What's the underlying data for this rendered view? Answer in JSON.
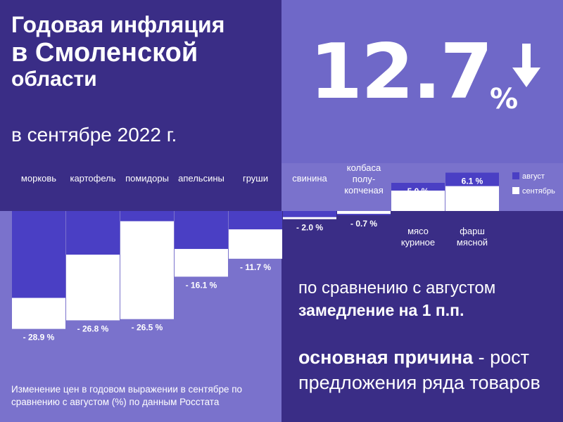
{
  "header": {
    "title_line1": "Годовая инфляция",
    "title_line2": "в Смоленской",
    "title_line3": "области",
    "subtitle": "в сентябре 2022 г."
  },
  "headline": {
    "value": "12.7",
    "unit": "%",
    "trend_icon": "down-arrow-icon"
  },
  "chart_data": {
    "type": "bar",
    "categories": [
      "морковь",
      "картофель",
      "помидоры",
      "апельсины",
      "груши",
      "свинина",
      "колбаса полу-копченая",
      "мясо куриное",
      "фарш мясной"
    ],
    "category_label_lines": [
      [
        "морковь"
      ],
      [
        "картофель"
      ],
      [
        "помидоры"
      ],
      [
        "апельсины"
      ],
      [
        "груши"
      ],
      [
        "свинина"
      ],
      [
        "колбаса",
        "полу-",
        "копченая"
      ],
      [
        "мясо",
        "куриное"
      ],
      [
        "фарш",
        "мясной"
      ]
    ],
    "series": [
      {
        "name": "август",
        "values": [
          -21.3,
          -10.7,
          -2.5,
          -9.3,
          -4.5,
          -1.5,
          -1.0,
          6.9,
          9.4
        ]
      },
      {
        "name": "сентябрь",
        "values": [
          -28.9,
          -26.8,
          -26.5,
          -16.1,
          -11.7,
          -2.0,
          -0.7,
          5.0,
          6.1
        ]
      }
    ],
    "data_labels": [
      "- 28.9 %",
      "- 26.8 %",
      "- 26.5 %",
      "- 16.1 %",
      "- 11.7 %",
      "- 2.0 %",
      "- 0.7 %",
      "5.0 %",
      "6.1 %"
    ],
    "legend": {
      "position": "right",
      "entries": [
        "август",
        "сентябрь"
      ]
    },
    "colors": {
      "august": "#4a3fc4",
      "september": "#ffffff",
      "text": "#ffffff"
    },
    "grid": false
  },
  "messages": {
    "line1": "по сравнению с августом",
    "line2": "замедление на 1 п.п.",
    "line3_bold": "основная причина",
    "line3_rest": " - рост предложения ряда товаров"
  },
  "footnote": "Изменение цен в годовом выражении в сентябре по сравнению с августом (%) по данным Росстата"
}
